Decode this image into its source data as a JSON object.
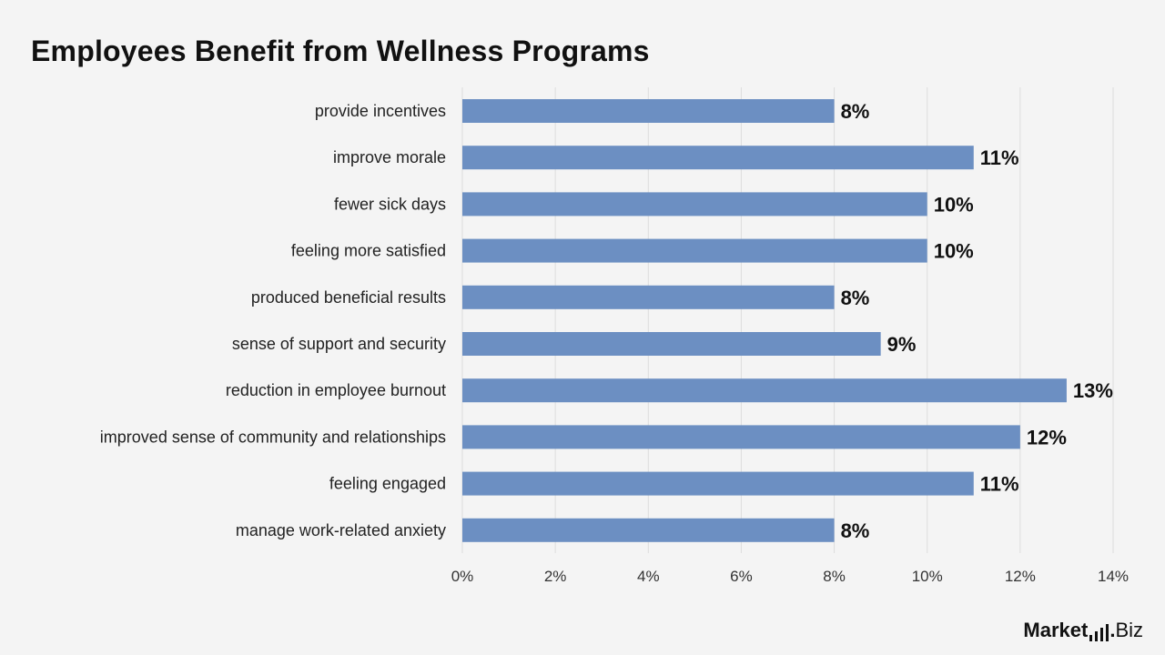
{
  "title": "Employees Benefit from Wellness Programs",
  "logo": {
    "brand": "Market",
    "dot": ".",
    "suffix": "Biz"
  },
  "chart_data": {
    "type": "bar",
    "orientation": "horizontal",
    "title": "Employees Benefit from Wellness Programs",
    "categories": [
      "provide incentives",
      "improve morale",
      "fewer sick days",
      "feeling more satisfied",
      "produced beneficial results",
      "sense of support and security",
      "reduction in employee burnout",
      "improved sense of community and relationships",
      "feeling engaged",
      "manage work-related anxiety"
    ],
    "values": [
      8,
      11,
      10,
      10,
      8,
      9,
      13,
      12,
      11,
      8
    ],
    "value_labels": [
      "8%",
      "11%",
      "10%",
      "10%",
      "8%",
      "9%",
      "13%",
      "12%",
      "11%",
      "8%"
    ],
    "xlim": [
      0,
      14
    ],
    "xticks": [
      0,
      2,
      4,
      6,
      8,
      10,
      12,
      14
    ],
    "xtick_labels": [
      "0%",
      "2%",
      "4%",
      "6%",
      "8%",
      "10%",
      "12%",
      "14%"
    ],
    "grid": true,
    "bar_color": "#6c8fc2",
    "grid_color": "#dddddd"
  }
}
